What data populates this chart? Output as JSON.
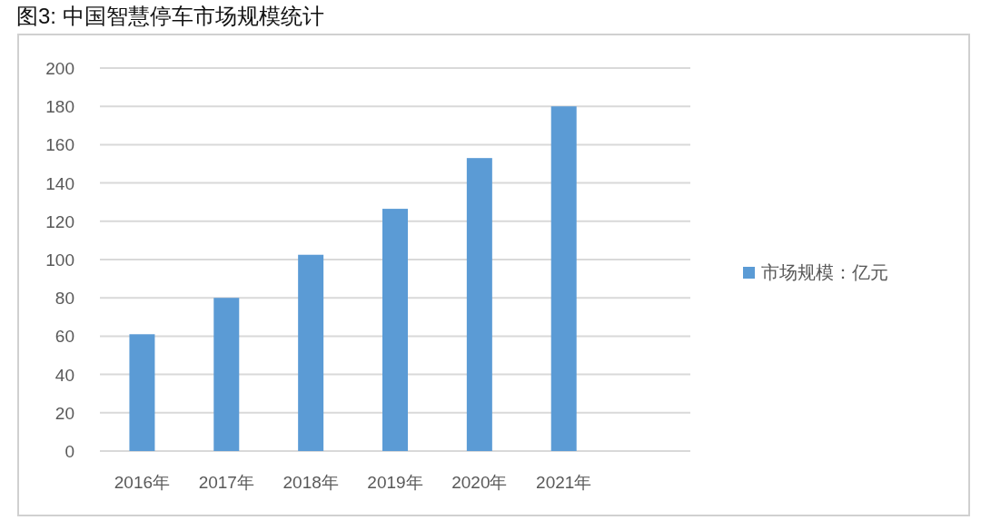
{
  "chart_data": {
    "type": "bar",
    "title": "图3: 中国智慧停车市场规模统计",
    "categories": [
      "2016年",
      "2017年",
      "2018年",
      "2019年",
      "2020年",
      "2021年"
    ],
    "series": [
      {
        "name": "市场规模：亿元",
        "color": "#5b9bd5",
        "values": [
          61,
          80,
          102.5,
          126.5,
          153,
          180
        ]
      }
    ],
    "ylim": [
      0,
      200
    ],
    "yticks": [
      0,
      20,
      40,
      60,
      80,
      100,
      120,
      140,
      160,
      180,
      200
    ],
    "grid": "y",
    "legend": "right"
  }
}
